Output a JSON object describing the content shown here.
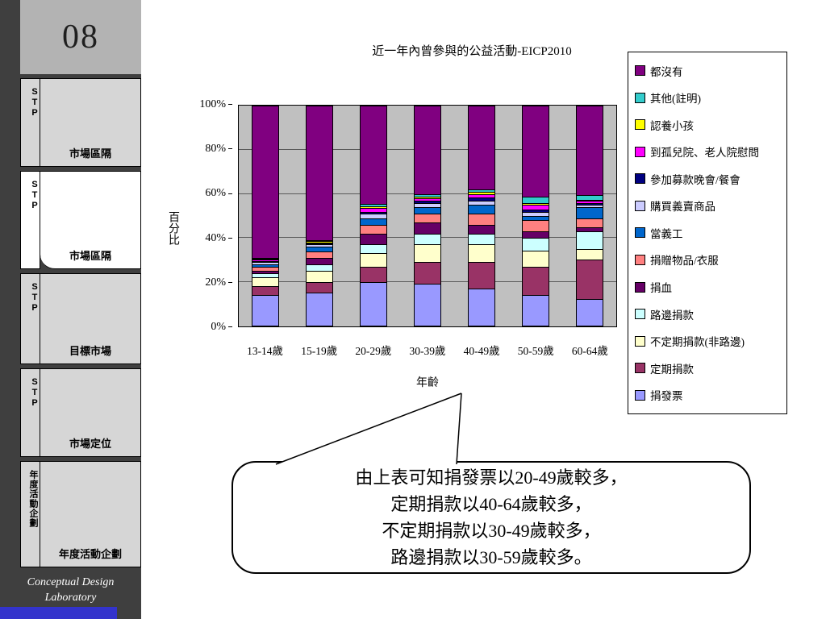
{
  "slide": {
    "page_number": "08",
    "lab_name_line1": "Conceptual  Design",
    "lab_name_line2": "Laboratory"
  },
  "sidebar": {
    "items": [
      {
        "tab": "STP",
        "label": "市場區隔",
        "active": false
      },
      {
        "tab": "STP",
        "label": "市場區隔",
        "active": true
      },
      {
        "tab": "STP",
        "label": "目標市場",
        "active": false
      },
      {
        "tab": "STP",
        "label": "市場定位",
        "active": false
      },
      {
        "tab": "年度活動企劃",
        "label": "年度活動企劃",
        "active": false
      }
    ]
  },
  "chart_data": {
    "type": "bar",
    "subtype": "stacked-100-percent",
    "title": "近一年內曾參與的公益活動-EICP2010",
    "xlabel": "年齡",
    "ylabel": "百分比",
    "ylim": [
      0,
      100
    ],
    "yticks": [
      "0%",
      "20%",
      "40%",
      "60%",
      "80%",
      "100%"
    ],
    "grid": true,
    "plot_bg": "#C0C0C0",
    "legend_position": "right",
    "categories": [
      "13-14歲",
      "15-19歲",
      "20-29歲",
      "30-39歲",
      "40-49歲",
      "50-59歲",
      "60-64歲"
    ],
    "series": [
      {
        "name": "捐發票",
        "color": "#9999FF",
        "values": [
          14,
          15,
          20,
          19,
          17,
          14,
          12
        ]
      },
      {
        "name": "定期捐款",
        "color": "#993366",
        "values": [
          4,
          5,
          7,
          10,
          12,
          13,
          18
        ]
      },
      {
        "name": "不定期捐款(非路邊)",
        "color": "#FFFFCC",
        "values": [
          4,
          5,
          6,
          8,
          8,
          7,
          5
        ]
      },
      {
        "name": "路邊捐款",
        "color": "#CCFFFF",
        "values": [
          2,
          3,
          4,
          5,
          5,
          6,
          8
        ]
      },
      {
        "name": "捐血",
        "color": "#660066",
        "values": [
          1,
          3,
          5,
          5,
          4,
          3,
          2
        ]
      },
      {
        "name": "捐贈物品/衣服",
        "color": "#FF8080",
        "values": [
          2,
          3,
          4,
          4,
          5,
          5,
          4
        ]
      },
      {
        "name": "當義工",
        "color": "#0066CC",
        "values": [
          1,
          2,
          3,
          3,
          4,
          2,
          5
        ]
      },
      {
        "name": "購買義賣商品",
        "color": "#CCCCFF",
        "values": [
          1,
          1,
          2,
          2,
          2,
          2,
          1
        ]
      },
      {
        "name": "參加募款晚會/餐會",
        "color": "#000080",
        "values": [
          0.5,
          0.5,
          1,
          1,
          1.5,
          1,
          1
        ]
      },
      {
        "name": "到孤兒院、老人院慰問",
        "color": "#FF00FF",
        "values": [
          0.5,
          0.5,
          1.5,
          1,
          1.5,
          2,
          1
        ]
      },
      {
        "name": "認養小孩",
        "color": "#FFFF00",
        "values": [
          0.5,
          0.5,
          1,
          1,
          1,
          1,
          0.5
        ]
      },
      {
        "name": "其他(註明)",
        "color": "#33CCCC",
        "values": [
          0.5,
          0.5,
          1,
          1,
          1,
          3,
          2
        ]
      },
      {
        "name": "都沒有",
        "color": "#800080",
        "values": [
          69,
          61,
          44.5,
          40,
          38,
          41,
          40.5
        ]
      }
    ],
    "stack_order_note": "series listed bottom-to-top; legend shown top-to-bottom reversed",
    "values_unit": "percent"
  },
  "callout": {
    "lines": [
      "由上表可知捐發票以20-49歲較多，",
      "定期捐款以40-64歲較多，",
      "不定期捐款以30-49歲較多，",
      "路邊捐款以30-59歲較多。"
    ]
  }
}
